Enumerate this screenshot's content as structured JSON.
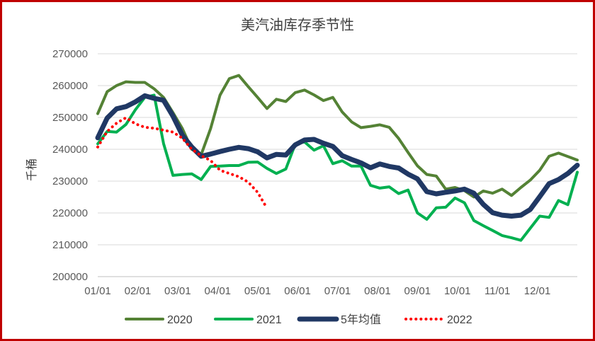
{
  "chart_data": {
    "type": "line",
    "title": "美汽油库存季节性",
    "ylabel": "千桶",
    "xlabel": "",
    "ylim": [
      200000,
      270000
    ],
    "yticks": [
      "200000",
      "210000",
      "220000",
      "230000",
      "240000",
      "250000",
      "260000",
      "270000"
    ],
    "xticks": [
      "01/01",
      "02/01",
      "03/01",
      "04/01",
      "05/01",
      "06/01",
      "07/01",
      "08/01",
      "09/01",
      "10/01",
      "11/01",
      "12/01"
    ],
    "x_unit": "week",
    "series": [
      {
        "name": "2020",
        "color": "#548235",
        "style": "solid",
        "values": [
          251200,
          258100,
          260000,
          261200,
          261000,
          261000,
          259000,
          256300,
          251500,
          246500,
          240000,
          238300,
          246500,
          257000,
          262200,
          263200,
          259700,
          256300,
          252800,
          255700,
          255000,
          257800,
          258600,
          257100,
          255300,
          256300,
          251700,
          248600,
          246800,
          247200,
          247700,
          246900,
          243400,
          239000,
          234800,
          232100,
          231600,
          227500,
          228000,
          227000,
          225000,
          226900,
          226200,
          227500,
          225500,
          228000,
          230300,
          233400,
          237800,
          238800,
          237700,
          236600
        ]
      },
      {
        "name": "2021",
        "color": "#00b050",
        "style": "solid",
        "values": [
          241700,
          245600,
          245400,
          247800,
          252400,
          256300,
          257000,
          241800,
          231800,
          232100,
          232300,
          230500,
          234600,
          234700,
          234900,
          234900,
          235900,
          236000,
          234000,
          232400,
          233800,
          241600,
          242300,
          239700,
          241100,
          235500,
          236400,
          234700,
          234700,
          228700,
          227800,
          228200,
          226100,
          227200,
          220000,
          218000,
          221600,
          221800,
          224700,
          223200,
          217600,
          216000,
          214500,
          212900,
          212200,
          211400,
          215200,
          219000,
          218600,
          223900,
          222600,
          232800
        ]
      },
      {
        "name": "5年均值",
        "color": "#203864",
        "style": "thick",
        "values": [
          243600,
          249800,
          252700,
          253400,
          254900,
          256800,
          256000,
          255400,
          250400,
          244400,
          240700,
          237800,
          238500,
          239300,
          240000,
          240600,
          240200,
          239200,
          237300,
          238400,
          238200,
          241400,
          242900,
          243100,
          241900,
          240900,
          238000,
          236800,
          235700,
          234200,
          235400,
          234600,
          234100,
          232200,
          230700,
          226700,
          226000,
          226500,
          226900,
          227500,
          226200,
          222700,
          220100,
          219300,
          219000,
          219300,
          221100,
          225100,
          229200,
          230500,
          232400,
          235000
        ]
      },
      {
        "name": "2022",
        "color": "#ff0000",
        "style": "dotted",
        "values": [
          240700,
          245600,
          248200,
          249900,
          248000,
          246900,
          246600,
          246000,
          245400,
          243500,
          240000,
          238000,
          236500,
          233400,
          232400,
          231400,
          229700,
          226500,
          221500
        ]
      }
    ]
  }
}
